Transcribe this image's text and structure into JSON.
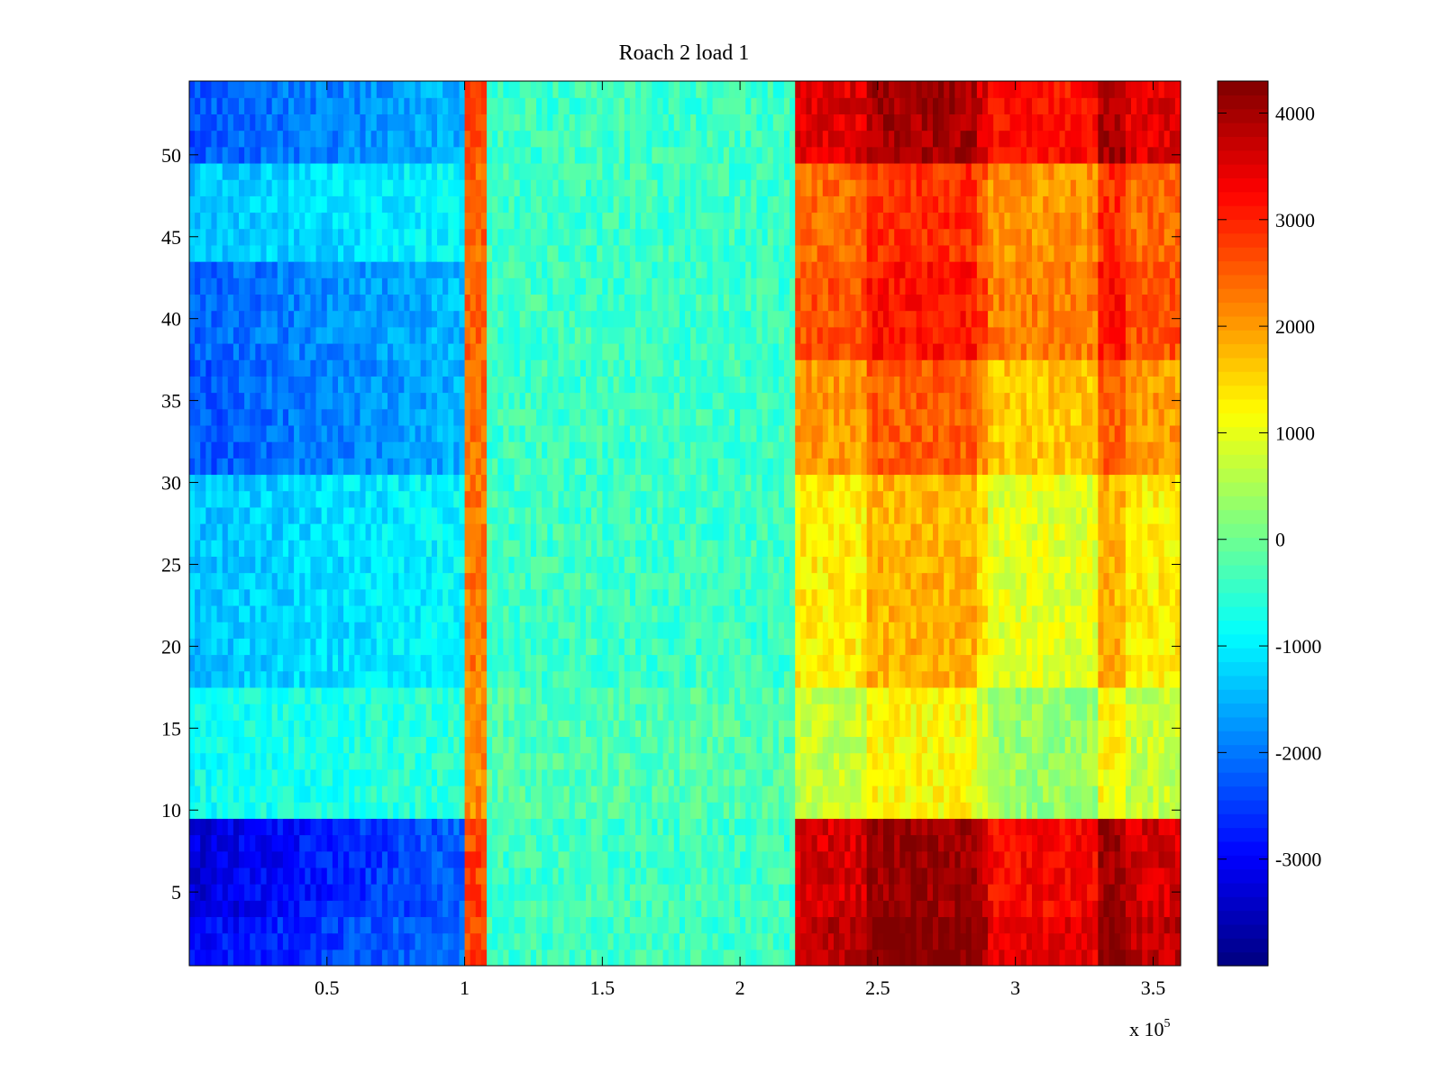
{
  "chart_data": {
    "type": "heatmap",
    "title": "Roach 2 load 1",
    "xlabel": "",
    "ylabel": "",
    "x_range": [
      0,
      360000
    ],
    "y_range": [
      0.5,
      54.5
    ],
    "x_exponent_label": {
      "base": "x 10",
      "power": "5"
    },
    "x_ticks": [
      0.5,
      1,
      1.5,
      2,
      2.5,
      3,
      3.5
    ],
    "x_tick_labels": [
      "0.5",
      "1",
      "1.5",
      "2",
      "2.5",
      "3",
      "3.5"
    ],
    "y_ticks": [
      5,
      10,
      15,
      20,
      25,
      30,
      35,
      40,
      45,
      50
    ],
    "y_tick_labels": [
      "5",
      "10",
      "15",
      "20",
      "25",
      "30",
      "35",
      "40",
      "45",
      "50"
    ],
    "colorbar": {
      "colormap": "jet",
      "range": [
        -4000,
        4300
      ],
      "ticks": [
        -3000,
        -2000,
        -1000,
        0,
        1000,
        2000,
        3000,
        4000
      ],
      "tick_labels": [
        "-3000",
        "-2000",
        "-1000",
        "0",
        "1000",
        "2000",
        "3000",
        "4000"
      ]
    },
    "x_segments": [
      {
        "x_start": 0,
        "x_end": 100000,
        "approx_value": -1700
      },
      {
        "x_start": 100000,
        "x_end": 108000,
        "approx_value": 2500
      },
      {
        "x_start": 108000,
        "x_end": 220000,
        "approx_value": -400
      },
      {
        "x_start": 220000,
        "x_end": 360000,
        "approx_value": 2200
      }
    ],
    "row_groups": [
      {
        "rows": "1-3",
        "left_value": -3000,
        "right_value": 3800
      },
      {
        "rows": "4-9",
        "left_value": -3300,
        "right_value": 3600
      },
      {
        "rows": "10-17",
        "left_value": -800,
        "right_value": 700
      },
      {
        "rows": "18-30",
        "left_value": -1400,
        "right_value": 1300
      },
      {
        "rows": "31-37",
        "left_value": -2300,
        "right_value": 2000
      },
      {
        "rows": "38-43",
        "left_value": -2200,
        "right_value": 2600
      },
      {
        "rows": "44-49",
        "left_value": -1400,
        "right_value": 2400
      },
      {
        "rows": "50-54",
        "left_value": -2300,
        "right_value": 3500
      }
    ]
  }
}
